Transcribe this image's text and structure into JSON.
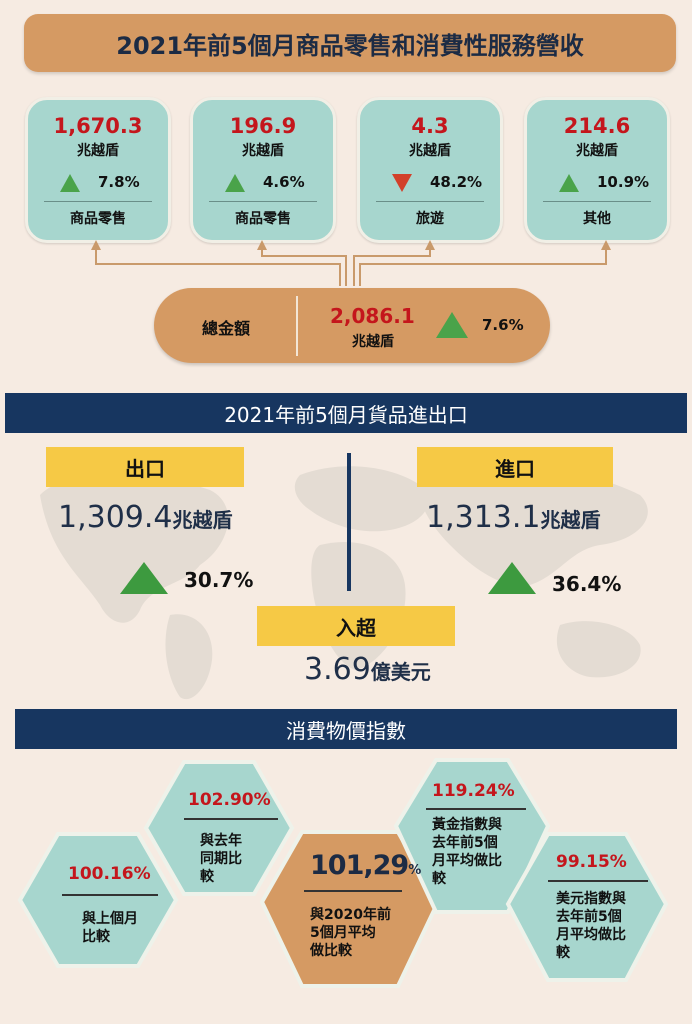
{
  "retail": {
    "title": "2021年前5個月商品零售和消費性服務營收",
    "items": [
      {
        "value": "1,670.3",
        "unit": "兆越盾",
        "direction": "up",
        "pct": "7.8%",
        "category": "商品零售"
      },
      {
        "value": "196.9",
        "unit": "兆越盾",
        "direction": "up",
        "pct": "4.6%",
        "category": "商品零售"
      },
      {
        "value": "4.3",
        "unit": "兆越盾",
        "direction": "down",
        "pct": "48.2%",
        "category": "旅遊"
      },
      {
        "value": "214.6",
        "unit": "兆越盾",
        "direction": "up",
        "pct": "10.9%",
        "category": "其他"
      }
    ],
    "total": {
      "label": "總金額",
      "value": "2,086.1",
      "unit": "兆越盾",
      "direction": "up",
      "pct": "7.6%"
    }
  },
  "trade": {
    "title": "2021年前5個月貨品進出口",
    "export": {
      "label": "出口",
      "value": "1,309.4",
      "unit": "兆越盾",
      "pct": "30.7%"
    },
    "import": {
      "label": "進口",
      "value": "1,313.1",
      "unit": "兆越盾",
      "pct": "36.4%"
    },
    "surplus": {
      "label": "入超",
      "value": "3.69",
      "unit": "億美元"
    }
  },
  "cpi": {
    "title": "消費物價指數",
    "items": [
      {
        "value": "100.16%",
        "desc1": "與上個月",
        "desc2": "比較"
      },
      {
        "value": "102.90%",
        "desc1": "與去年",
        "desc2": "同期比",
        "desc3": "較"
      },
      {
        "value": "101,29",
        "suffix": "%",
        "desc1": "與2020年前",
        "desc2": "5個月平均",
        "desc3": "做比較"
      },
      {
        "value": "119.24%",
        "desc1": "黃金指數與",
        "desc2": "去年前5個",
        "desc3": "月平均做比",
        "desc4": "較"
      },
      {
        "value": "99.15%",
        "desc1": "美元指數與",
        "desc2": "去年前5個",
        "desc3": "月平均做比",
        "desc4": "較"
      }
    ]
  },
  "colors": {
    "orange": "#d59a63",
    "teal": "#a7d6ce",
    "navy": "#173660",
    "yellow": "#f6c945",
    "red": "#c4161c",
    "green": "#4aa34a",
    "down_red": "#d2402a",
    "background": "#f6ebe2"
  }
}
